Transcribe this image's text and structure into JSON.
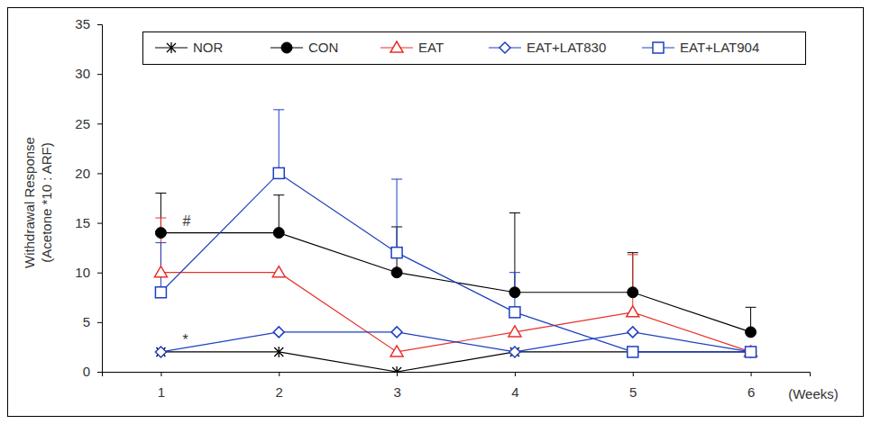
{
  "chart_data": {
    "type": "line",
    "y_label": [
      "Withdrawal Response",
      "(Acetone *10 : ARF)"
    ],
    "x_label": "(Weeks)",
    "x": [
      1,
      2,
      3,
      4,
      5,
      6
    ],
    "xlim": [
      0.5,
      6.5
    ],
    "xticks": [
      1,
      2,
      3,
      4,
      5,
      6
    ],
    "ylim": [
      0,
      35
    ],
    "yticks": [
      0,
      5,
      10,
      15,
      20,
      25,
      30,
      35
    ],
    "grid": false,
    "legend": "top",
    "series": [
      {
        "name": "NOR",
        "color": "#000000",
        "marker": "asterisk",
        "line_style": "solid",
        "values": [
          2,
          2,
          0,
          2,
          2,
          2
        ]
      },
      {
        "name": "CON",
        "color": "#000000",
        "marker": "circle",
        "line_style": "solid",
        "values": [
          14,
          14,
          10,
          8,
          8,
          4
        ],
        "errors": [
          4,
          3.8,
          4.6,
          8,
          4,
          2.5
        ]
      },
      {
        "name": "EAT",
        "color": "#e8302a",
        "marker": "triangle-open",
        "line_style": "solid",
        "values": [
          10,
          10,
          2,
          4,
          6,
          2
        ],
        "errors": [
          5.5,
          null,
          null,
          null,
          5.8,
          null
        ]
      },
      {
        "name": "EAT+LAT830",
        "color": "#1c3fc2",
        "marker": "diamond-open",
        "line_style": "solid",
        "values": [
          2,
          4,
          4,
          2,
          4,
          2
        ]
      },
      {
        "name": "EAT+LAT904",
        "color": "#1c3fc2",
        "marker": "square-open",
        "line_style": "solid",
        "values": [
          8,
          20,
          12,
          6,
          2,
          2
        ],
        "errors": [
          5,
          6.4,
          7.4,
          4,
          null,
          null
        ]
      }
    ],
    "annotations": [
      {
        "text": "#",
        "series": "CON",
        "x": 1
      },
      {
        "text": "*",
        "series": "NOR",
        "x": 1
      }
    ]
  }
}
